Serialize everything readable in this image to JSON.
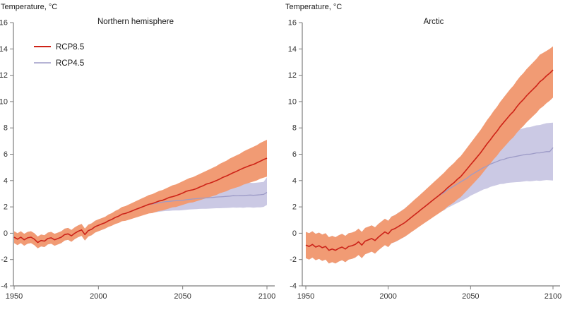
{
  "figure": {
    "background": "#ffffff",
    "axis_color": "#7d7d7d",
    "text_color": "#333333"
  },
  "chart_data": [
    {
      "type": "line",
      "title": "Northern hemisphere",
      "ylabel": "Temperature, °C",
      "xlabel": "",
      "x_ticks": [
        1950,
        2000,
        2050,
        2100
      ],
      "y_ticks": [
        16,
        14,
        12,
        10,
        8,
        6,
        4,
        2,
        0,
        -2,
        -4
      ],
      "xlim": [
        1950,
        2100
      ],
      "ylim": [
        -4,
        16
      ],
      "grid": false,
      "legend_position": "upper-left-inside",
      "legend": {
        "y": 66,
        "dy": 23
      },
      "year_start": 1950,
      "year_step": 2,
      "series": [
        {
          "name": "RCP8.5",
          "line_color": "#ce2317",
          "band_color": "#f19b74",
          "line_width": 1.6,
          "mean": [
            -0.3,
            -0.45,
            -0.3,
            -0.5,
            -0.35,
            -0.3,
            -0.45,
            -0.7,
            -0.55,
            -0.6,
            -0.4,
            -0.35,
            -0.5,
            -0.4,
            -0.3,
            -0.1,
            -0.05,
            -0.2,
            0.0,
            0.15,
            0.25,
            -0.1,
            0.2,
            0.3,
            0.5,
            0.6,
            0.7,
            0.8,
            0.95,
            1.05,
            1.2,
            1.3,
            1.45,
            1.5,
            1.6,
            1.7,
            1.8,
            1.9,
            2.0,
            2.1,
            2.2,
            2.25,
            2.35,
            2.45,
            2.5,
            2.6,
            2.72,
            2.78,
            2.85,
            2.95,
            3.05,
            3.18,
            3.25,
            3.3,
            3.38,
            3.5,
            3.6,
            3.73,
            3.8,
            3.9,
            4.0,
            4.12,
            4.25,
            4.35,
            4.47,
            4.6,
            4.7,
            4.83,
            4.95,
            5.05,
            5.15,
            5.22,
            5.35,
            5.47,
            5.6,
            5.7
          ],
          "lower": [
            -0.75,
            -0.9,
            -0.75,
            -0.95,
            -0.8,
            -0.75,
            -0.9,
            -1.15,
            -1.0,
            -1.05,
            -0.85,
            -0.8,
            -0.95,
            -0.85,
            -0.75,
            -0.55,
            -0.5,
            -0.65,
            -0.45,
            -0.3,
            -0.2,
            -0.55,
            -0.25,
            -0.15,
            0.05,
            0.15,
            0.25,
            0.35,
            0.48,
            0.57,
            0.7,
            0.78,
            0.91,
            0.94,
            1.02,
            1.1,
            1.18,
            1.26,
            1.34,
            1.42,
            1.5,
            1.53,
            1.61,
            1.69,
            1.72,
            1.8,
            1.88,
            1.96,
            1.99,
            2.07,
            2.15,
            2.23,
            2.31,
            2.34,
            2.42,
            2.5,
            2.58,
            2.66,
            2.74,
            2.82,
            2.9,
            3.03,
            3.11,
            3.19,
            3.32,
            3.4,
            3.48,
            3.56,
            3.69,
            3.77,
            3.85,
            3.93,
            4.01,
            4.14,
            4.22,
            4.3
          ],
          "upper": [
            0.15,
            0.0,
            0.15,
            -0.05,
            0.1,
            0.15,
            0.0,
            -0.25,
            -0.1,
            -0.15,
            0.05,
            0.1,
            -0.05,
            0.05,
            0.15,
            0.35,
            0.4,
            0.25,
            0.45,
            0.6,
            0.7,
            0.35,
            0.65,
            0.75,
            0.95,
            1.05,
            1.15,
            1.25,
            1.42,
            1.53,
            1.7,
            1.82,
            1.99,
            2.06,
            2.18,
            2.3,
            2.42,
            2.54,
            2.66,
            2.78,
            2.9,
            2.97,
            3.09,
            3.21,
            3.28,
            3.4,
            3.52,
            3.64,
            3.71,
            3.83,
            3.95,
            4.07,
            4.19,
            4.26,
            4.38,
            4.5,
            4.62,
            4.74,
            4.86,
            4.98,
            5.1,
            5.27,
            5.39,
            5.51,
            5.68,
            5.8,
            5.92,
            6.04,
            6.21,
            6.33,
            6.45,
            6.57,
            6.69,
            6.86,
            6.98,
            7.1
          ]
        },
        {
          "name": "RCP4.5",
          "line_color": "#9d9bc7",
          "band_color": "#cbc9e4",
          "line_width": 1.3,
          "mean": [
            -0.3,
            -0.45,
            -0.3,
            -0.5,
            -0.35,
            -0.3,
            -0.45,
            -0.7,
            -0.55,
            -0.6,
            -0.4,
            -0.35,
            -0.5,
            -0.4,
            -0.3,
            -0.1,
            -0.05,
            -0.2,
            0.0,
            0.15,
            0.25,
            -0.1,
            0.2,
            0.3,
            0.5,
            0.6,
            0.7,
            0.8,
            0.95,
            1.05,
            1.2,
            1.3,
            1.45,
            1.5,
            1.6,
            1.7,
            1.8,
            1.9,
            2.0,
            2.1,
            2.2,
            2.22,
            2.28,
            2.32,
            2.36,
            2.4,
            2.42,
            2.45,
            2.47,
            2.48,
            2.5,
            2.54,
            2.57,
            2.6,
            2.62,
            2.65,
            2.67,
            2.68,
            2.7,
            2.72,
            2.75,
            2.76,
            2.78,
            2.8,
            2.82,
            2.85,
            2.84,
            2.86,
            2.85,
            2.88,
            2.9,
            2.88,
            2.9,
            2.92,
            2.95,
            3.1
          ],
          "lower": [
            -0.75,
            -0.9,
            -0.75,
            -0.95,
            -0.8,
            -0.75,
            -0.9,
            -1.15,
            -1.0,
            -1.05,
            -0.85,
            -0.8,
            -0.95,
            -0.85,
            -0.75,
            -0.55,
            -0.5,
            -0.65,
            -0.45,
            -0.3,
            -0.2,
            -0.55,
            -0.25,
            -0.15,
            0.05,
            0.15,
            0.25,
            0.35,
            0.49,
            0.58,
            0.71,
            0.79,
            0.92,
            0.96,
            1.04,
            1.12,
            1.21,
            1.29,
            1.38,
            1.46,
            1.55,
            1.56,
            1.6,
            1.63,
            1.66,
            1.69,
            1.7,
            1.72,
            1.73,
            1.73,
            1.75,
            1.78,
            1.8,
            1.82,
            1.83,
            1.85,
            1.86,
            1.86,
            1.87,
            1.88,
            1.9,
            1.9,
            1.91,
            1.92,
            1.93,
            1.95,
            1.94,
            1.95,
            1.93,
            1.96,
            1.97,
            1.94,
            1.96,
            1.97,
            2.0,
            2.15
          ],
          "upper": [
            0.15,
            0.0,
            0.15,
            -0.05,
            0.1,
            0.15,
            0.0,
            -0.25,
            -0.1,
            -0.15,
            0.05,
            0.1,
            -0.05,
            0.05,
            0.15,
            0.35,
            0.4,
            0.25,
            0.45,
            0.6,
            0.7,
            0.35,
            0.65,
            0.75,
            0.95,
            1.05,
            1.15,
            1.25,
            1.41,
            1.52,
            1.69,
            1.81,
            1.98,
            2.04,
            2.16,
            2.28,
            2.39,
            2.51,
            2.62,
            2.74,
            2.85,
            2.88,
            2.96,
            3.01,
            3.06,
            3.11,
            3.14,
            3.18,
            3.21,
            3.23,
            3.25,
            3.3,
            3.34,
            3.38,
            3.41,
            3.45,
            3.48,
            3.5,
            3.53,
            3.56,
            3.6,
            3.62,
            3.65,
            3.68,
            3.71,
            3.75,
            3.75,
            3.77,
            3.77,
            3.81,
            3.83,
            3.82,
            3.84,
            3.87,
            3.9,
            4.25
          ]
        }
      ]
    },
    {
      "type": "line",
      "title": "Arctic",
      "ylabel": "Temperature, °C",
      "xlabel": "",
      "x_ticks": [
        1950,
        2000,
        2050,
        2100
      ],
      "y_ticks": [
        16,
        14,
        12,
        10,
        8,
        6,
        4,
        2,
        0,
        -2,
        -4
      ],
      "xlim": [
        1950,
        2100
      ],
      "ylim": [
        -4,
        16
      ],
      "grid": false,
      "legend_position": "none",
      "legend": null,
      "year_start": 1950,
      "year_step": 2,
      "series": [
        {
          "name": "RCP8.5",
          "line_color": "#ce2317",
          "band_color": "#f19b74",
          "line_width": 1.6,
          "mean": [
            -0.9,
            -1.0,
            -0.85,
            -1.05,
            -0.95,
            -1.1,
            -1.0,
            -1.3,
            -1.2,
            -1.3,
            -1.15,
            -1.05,
            -1.2,
            -1.0,
            -0.95,
            -0.85,
            -0.65,
            -0.9,
            -0.6,
            -0.5,
            -0.4,
            -0.55,
            -0.3,
            -0.1,
            0.1,
            -0.05,
            0.25,
            0.35,
            0.5,
            0.65,
            0.8,
            1.0,
            1.2,
            1.4,
            1.6,
            1.8,
            2.0,
            2.2,
            2.4,
            2.6,
            2.8,
            3.0,
            3.2,
            3.45,
            3.65,
            3.85,
            4.1,
            4.3,
            4.6,
            4.9,
            5.2,
            5.5,
            5.8,
            6.1,
            6.45,
            6.8,
            7.1,
            7.45,
            7.75,
            8.1,
            8.4,
            8.7,
            9.0,
            9.25,
            9.6,
            9.9,
            10.15,
            10.45,
            10.7,
            10.95,
            11.2,
            11.5,
            11.7,
            11.95,
            12.15,
            12.4
          ],
          "lower": [
            -1.9,
            -2.0,
            -1.85,
            -2.05,
            -1.95,
            -2.1,
            -2.0,
            -2.3,
            -2.2,
            -2.3,
            -2.15,
            -2.05,
            -2.2,
            -2.0,
            -1.95,
            -1.85,
            -1.65,
            -1.9,
            -1.6,
            -1.5,
            -1.4,
            -1.55,
            -1.3,
            -1.1,
            -0.9,
            -1.05,
            -0.76,
            -0.67,
            -0.54,
            -0.4,
            -0.27,
            -0.1,
            0.08,
            0.25,
            0.43,
            0.6,
            0.77,
            0.94,
            1.11,
            1.28,
            1.45,
            1.62,
            1.79,
            2.01,
            2.18,
            2.35,
            2.57,
            2.74,
            3.01,
            3.28,
            3.55,
            3.82,
            4.09,
            4.36,
            4.68,
            5.0,
            5.28,
            5.61,
            5.89,
            6.22,
            6.5,
            6.78,
            7.06,
            7.29,
            7.62,
            7.9,
            8.14,
            8.43,
            8.67,
            8.91,
            9.15,
            9.44,
            9.63,
            9.87,
            10.06,
            10.3
          ],
          "upper": [
            0.1,
            0.0,
            0.15,
            -0.05,
            0.05,
            -0.1,
            0.0,
            -0.3,
            -0.2,
            -0.3,
            -0.15,
            -0.05,
            -0.2,
            0.0,
            0.05,
            0.15,
            0.35,
            0.1,
            0.4,
            0.5,
            0.6,
            0.45,
            0.7,
            0.9,
            1.1,
            0.95,
            1.26,
            1.37,
            1.54,
            1.7,
            1.87,
            2.1,
            2.32,
            2.55,
            2.77,
            3.0,
            3.23,
            3.46,
            3.69,
            3.92,
            4.15,
            4.38,
            4.61,
            4.89,
            5.12,
            5.35,
            5.63,
            5.86,
            6.19,
            6.52,
            6.85,
            7.18,
            7.51,
            7.84,
            8.22,
            8.6,
            8.92,
            9.29,
            9.61,
            9.98,
            10.3,
            10.62,
            10.94,
            11.21,
            11.58,
            11.9,
            12.16,
            12.47,
            12.73,
            12.99,
            13.25,
            13.56,
            13.7,
            13.85,
            14.0,
            14.2
          ]
        },
        {
          "name": "RCP4.5",
          "line_color": "#9d9bc7",
          "band_color": "#cbc9e4",
          "line_width": 1.3,
          "mean": [
            -0.9,
            -1.0,
            -0.85,
            -1.05,
            -0.95,
            -1.1,
            -1.0,
            -1.3,
            -1.2,
            -1.3,
            -1.15,
            -1.05,
            -1.2,
            -1.0,
            -0.95,
            -0.85,
            -0.65,
            -0.9,
            -0.6,
            -0.5,
            -0.4,
            -0.55,
            -0.3,
            -0.1,
            0.1,
            -0.05,
            0.25,
            0.35,
            0.5,
            0.65,
            0.8,
            1.0,
            1.2,
            1.4,
            1.6,
            1.8,
            2.0,
            2.2,
            2.4,
            2.6,
            2.8,
            2.95,
            3.1,
            3.3,
            3.45,
            3.6,
            3.75,
            3.9,
            4.05,
            4.2,
            4.4,
            4.55,
            4.7,
            4.85,
            5.0,
            5.1,
            5.25,
            5.35,
            5.45,
            5.55,
            5.6,
            5.7,
            5.75,
            5.8,
            5.85,
            5.9,
            5.95,
            6.0,
            6.0,
            6.05,
            6.1,
            6.1,
            6.15,
            6.2,
            6.2,
            6.5
          ],
          "lower": [
            -1.9,
            -2.0,
            -1.85,
            -2.05,
            -1.95,
            -2.1,
            -2.0,
            -2.3,
            -2.2,
            -2.3,
            -2.15,
            -2.05,
            -2.2,
            -2.0,
            -1.95,
            -1.85,
            -1.65,
            -1.9,
            -1.6,
            -1.5,
            -1.4,
            -1.55,
            -1.3,
            -1.1,
            -0.9,
            -1.05,
            -0.77,
            -0.68,
            -0.55,
            -0.41,
            -0.28,
            -0.1,
            0.08,
            0.26,
            0.44,
            0.62,
            0.8,
            0.97,
            1.15,
            1.32,
            1.5,
            1.63,
            1.75,
            1.93,
            2.05,
            2.18,
            2.3,
            2.43,
            2.55,
            2.68,
            2.85,
            2.97,
            3.09,
            3.21,
            3.33,
            3.4,
            3.52,
            3.59,
            3.66,
            3.73,
            3.75,
            3.82,
            3.84,
            3.86,
            3.88,
            3.9,
            3.93,
            3.96,
            3.94,
            3.97,
            4.0,
            3.98,
            4.01,
            4.04,
            4.02,
            4.0
          ],
          "upper": [
            0.1,
            0.0,
            0.15,
            -0.05,
            0.05,
            -0.1,
            0.0,
            -0.3,
            -0.2,
            -0.3,
            -0.15,
            -0.05,
            -0.2,
            0.0,
            0.05,
            0.15,
            0.35,
            0.1,
            0.4,
            0.5,
            0.6,
            0.45,
            0.7,
            0.9,
            1.1,
            0.95,
            1.27,
            1.38,
            1.55,
            1.71,
            1.88,
            2.1,
            2.32,
            2.54,
            2.76,
            2.98,
            3.2,
            3.43,
            3.65,
            3.88,
            4.1,
            4.27,
            4.45,
            4.67,
            4.85,
            5.02,
            5.2,
            5.37,
            5.55,
            5.72,
            5.95,
            6.13,
            6.31,
            6.49,
            6.67,
            6.8,
            6.98,
            7.11,
            7.24,
            7.37,
            7.45,
            7.58,
            7.66,
            7.74,
            7.82,
            7.9,
            7.97,
            8.04,
            8.06,
            8.13,
            8.2,
            8.22,
            8.29,
            8.36,
            8.38,
            8.4
          ]
        }
      ]
    }
  ]
}
